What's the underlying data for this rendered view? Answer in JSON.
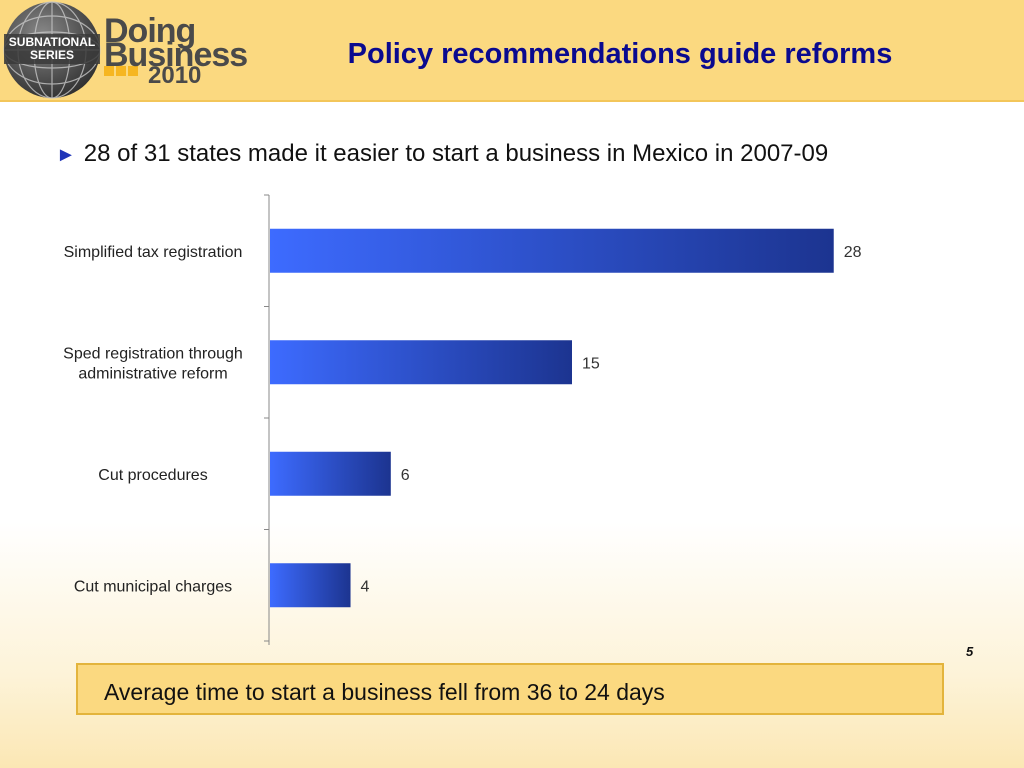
{
  "header": {
    "title": "Policy recommendations guide reforms",
    "logo": {
      "series_line1": "SUBNATIONAL",
      "series_line2": "SERIES",
      "word1": "Doing",
      "word2": "Business",
      "year": "2010",
      "icon": "globe-icon"
    }
  },
  "subtitle": {
    "bullet": "►",
    "text": "28 of 31 states made it easier to start a business in Mexico in 2007-09"
  },
  "chart_data": {
    "type": "bar",
    "orientation": "horizontal",
    "categories": [
      "Simplified tax registration",
      "Sped registration through administrative reform",
      "Cut procedures",
      "Cut municipal charges"
    ],
    "category_lines": [
      [
        "Simplified tax registration"
      ],
      [
        "Sped registration through",
        "administrative reform"
      ],
      [
        "Cut procedures"
      ],
      [
        "Cut municipal charges"
      ]
    ],
    "values": [
      28,
      15,
      6,
      4
    ],
    "data_labels": [
      "28",
      "15",
      "6",
      "4"
    ],
    "xlim": [
      0,
      30
    ],
    "title": "",
    "xlabel": "",
    "ylabel": "",
    "grid": false,
    "legend": "none",
    "colors": {
      "bar_start": "#3d6bff",
      "bar_end": "#1c3490"
    }
  },
  "footer": {
    "page_number": "5",
    "note": "Average time to start a business fell from 36 to 24 days"
  },
  "colors": {
    "header_bg": "#fbd980",
    "title": "#0a0a8f",
    "footer_box_bg": "#fbd980",
    "footer_box_border": "#e3b43c"
  }
}
